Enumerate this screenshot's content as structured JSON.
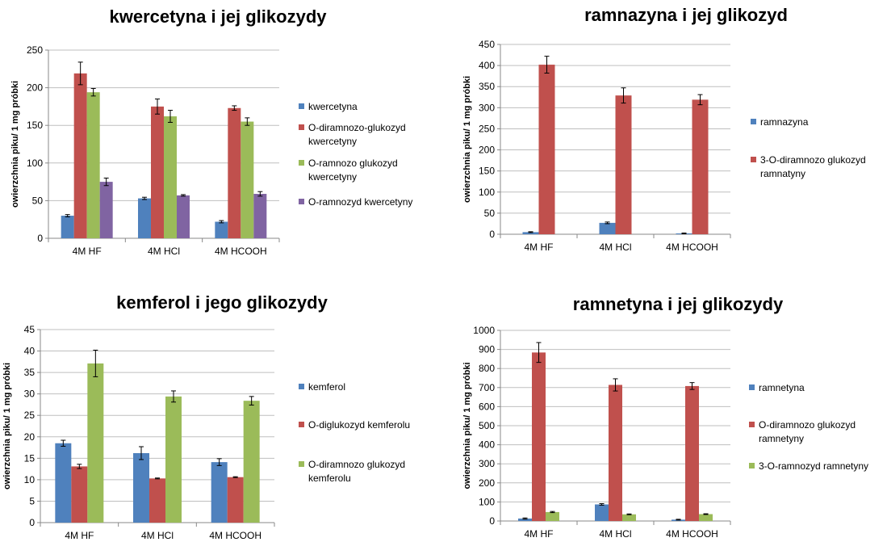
{
  "chart_data": [
    {
      "type": "bar",
      "title": "kwercetyna i jej glikozydy",
      "ylabel": "owierzchnia piku/ 1 mg próbki",
      "categories": [
        "4M HF",
        "4M HCl",
        "4M HCOOH"
      ],
      "ylim": [
        0,
        250
      ],
      "yticks": [
        0,
        50,
        100,
        150,
        200,
        250
      ],
      "grid": true,
      "legend": "right",
      "series": [
        {
          "name": "kwercetyna",
          "color": "#4f81bd",
          "values": [
            30,
            53,
            22
          ],
          "errors": [
            1.5,
            1.5,
            1.5
          ]
        },
        {
          "name": "O-diramnozo-glukozyd kwercetyny",
          "color": "#c0504d",
          "values": [
            219,
            175,
            173
          ],
          "errors": [
            15,
            10,
            3
          ]
        },
        {
          "name": "O-ramnozo glukozyd kwercetyny",
          "color": "#9bbb59",
          "values": [
            194,
            162,
            155
          ],
          "errors": [
            5,
            8,
            5
          ]
        },
        {
          "name": "O-ramnozyd kwercetyny",
          "color": "#8064a2",
          "values": [
            75,
            57,
            59
          ],
          "errors": [
            5,
            1,
            3
          ]
        }
      ]
    },
    {
      "type": "bar",
      "title": "ramnazyna i jej glikozyd",
      "ylabel": "owierzchnia piku/ 1 mg próbki",
      "categories": [
        "4M HF",
        "4M HCl",
        "4M HCOOH"
      ],
      "ylim": [
        0,
        450
      ],
      "yticks": [
        0,
        50,
        100,
        150,
        200,
        250,
        300,
        350,
        400,
        450
      ],
      "grid": true,
      "legend": "right",
      "series": [
        {
          "name": "ramnazyna",
          "color": "#4f81bd",
          "values": [
            5,
            27,
            2
          ],
          "errors": [
            1,
            2,
            1
          ]
        },
        {
          "name": "3-O-diramnozo glukozyd ramnatyny",
          "color": "#c0504d",
          "values": [
            402,
            329,
            319
          ],
          "errors": [
            20,
            18,
            12
          ]
        }
      ]
    },
    {
      "type": "bar",
      "title": "kemferol i jego glikozydy",
      "ylabel": "owierzchnia piku/ 1 mg próbki",
      "categories": [
        "4M HF",
        "4M HCl",
        "4M HCOOH"
      ],
      "ylim": [
        0,
        45
      ],
      "yticks": [
        0,
        5,
        10,
        15,
        20,
        25,
        30,
        35,
        40,
        45
      ],
      "grid": true,
      "legend": "right",
      "series": [
        {
          "name": "kemferol",
          "color": "#4f81bd",
          "values": [
            18.5,
            16.2,
            14.1
          ],
          "errors": [
            0.7,
            1.5,
            0.8
          ]
        },
        {
          "name": "O-diglukozyd kemferolu",
          "color": "#c0504d",
          "values": [
            13.1,
            10.3,
            10.6
          ],
          "errors": [
            0.5,
            0.1,
            0.1
          ]
        },
        {
          "name": "O-diramnozo glukozyd kemferolu",
          "color": "#9bbb59",
          "values": [
            37.1,
            29.4,
            28.4
          ],
          "errors": [
            3.1,
            1.3,
            1.0
          ]
        }
      ]
    },
    {
      "type": "bar",
      "title": "ramnetyna i jej glikozydy",
      "ylabel": "owierzchnia piku/ 1 mg próbki",
      "categories": [
        "4M HF",
        "4M HCl",
        "4M HCOOH"
      ],
      "ylim": [
        0,
        1000
      ],
      "yticks": [
        0,
        100,
        200,
        300,
        400,
        500,
        600,
        700,
        800,
        900,
        1000
      ],
      "grid": true,
      "legend": "right",
      "series": [
        {
          "name": "ramnetyna",
          "color": "#4f81bd",
          "values": [
            13,
            87,
            7
          ],
          "errors": [
            3,
            4,
            2
          ]
        },
        {
          "name": "O-diramnozo glukozyd ramnetyny",
          "color": "#c0504d",
          "values": [
            884,
            714,
            708
          ],
          "errors": [
            52,
            32,
            18
          ]
        },
        {
          "name": "3-O-ramnozyd ramnetyny",
          "color": "#9bbb59",
          "values": [
            47,
            35,
            36
          ],
          "errors": [
            3,
            2,
            2
          ]
        }
      ]
    }
  ]
}
